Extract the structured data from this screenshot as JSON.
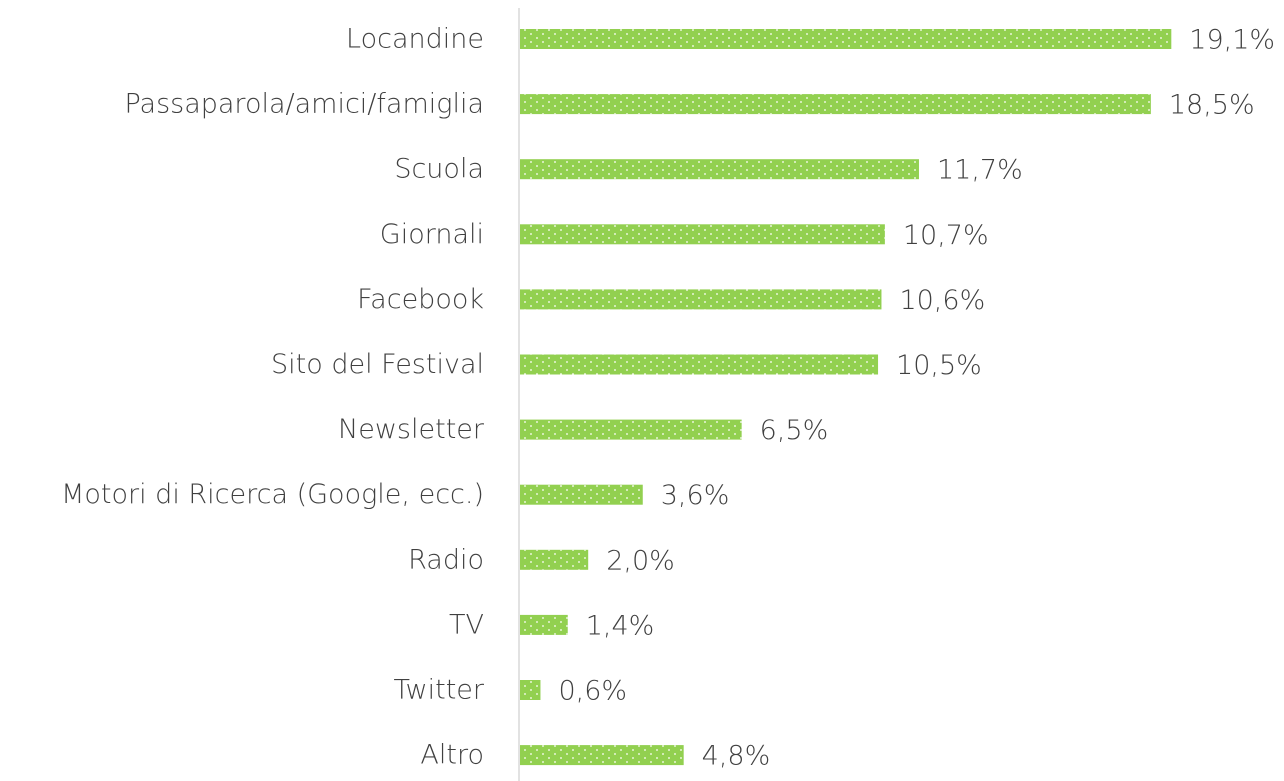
{
  "chart_data": {
    "type": "bar",
    "orientation": "horizontal",
    "categories": [
      "Locandine",
      "Passaparola/amici/famiglia",
      "Scuola",
      "Giornali",
      "Facebook",
      "Sito del Festival",
      "Newsletter",
      "Motori di Ricerca (Google, ecc.)",
      "Radio",
      "TV",
      "Twitter",
      "Altro"
    ],
    "values": [
      19.1,
      18.5,
      11.7,
      10.7,
      10.6,
      10.5,
      6.5,
      3.6,
      2.0,
      1.4,
      0.6,
      4.8
    ],
    "value_labels": [
      "19,1%",
      "18,5%",
      "11,7%",
      "10,7%",
      "10,6%",
      "10,5%",
      "6,5%",
      "3,6%",
      "2,0%",
      "1,4%",
      "0,6%",
      "4,8%"
    ],
    "color": "#92d050"
  }
}
